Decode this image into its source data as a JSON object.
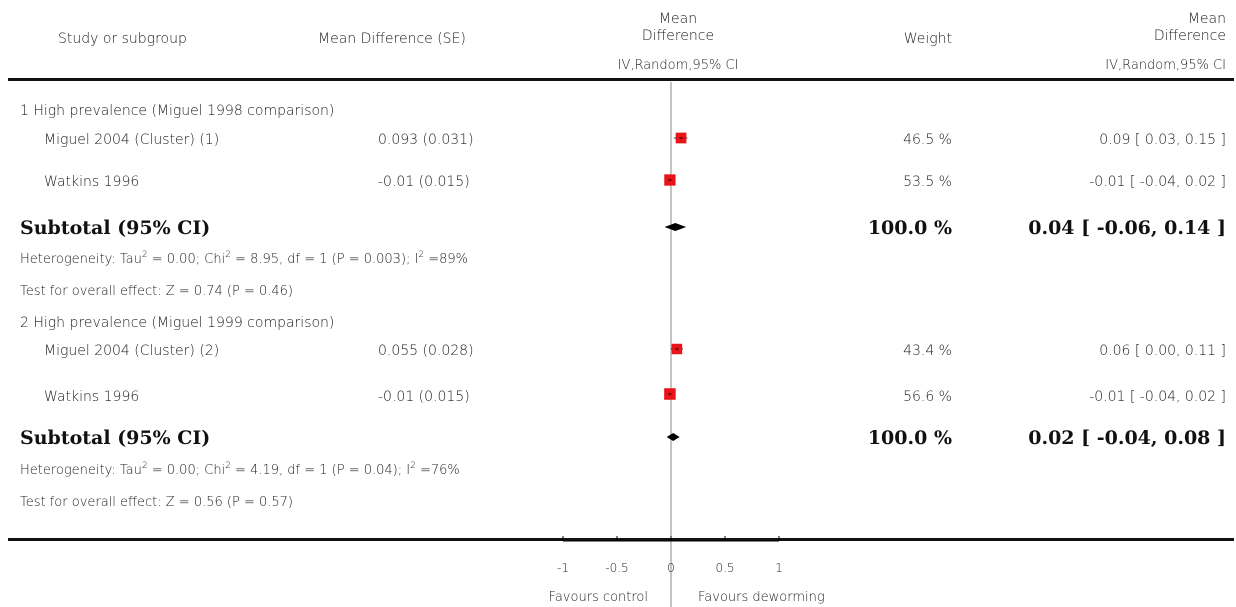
{
  "header": {
    "study": "Study or subgroup",
    "md_se": "Mean Difference (SE)",
    "md_line1": "Mean",
    "md_line2": "Difference",
    "md_method": "IV,Random,95% CI",
    "weight": "Weight",
    "md2_line1": "Mean",
    "md2_line2": "Difference",
    "md2_method": "IV,Random,95% CI"
  },
  "groups": [
    {
      "title": "1 High prevalence (Miguel 1998 comparison)",
      "studies": [
        {
          "name": "Miguel 2004 (Cluster) (1)",
          "md_se": "0.093 (0.031)",
          "weight": "46.5 %",
          "ci_text": "0.09 [ 0.03, 0.15 ]"
        },
        {
          "name": "Watkins 1996",
          "md_se": "-0.01 (0.015)",
          "weight": "53.5 %",
          "ci_text": "-0.01 [ -0.04, 0.02 ]"
        }
      ],
      "subtotal_label": "Subtotal (95% CI)",
      "subtotal_weight": "100.0 %",
      "subtotal_ci": "0.04 [ -0.06, 0.14 ]",
      "heterogeneity": {
        "a": "Heterogeneity: Tau",
        "b": " = 0.00; Chi",
        "c": " = 8.95, df = 1 (P = 0.003); I",
        "d": " =89%",
        "sup": "2"
      },
      "overall": "Test for overall effect: Z = 0.74 (P = 0.46)"
    },
    {
      "title": "2 High prevalence (Miguel 1999 comparison)",
      "studies": [
        {
          "name": "Miguel 2004 (Cluster) (2)",
          "md_se": "0.055 (0.028)",
          "weight": "43.4 %",
          "ci_text": "0.06 [ 0.00, 0.11 ]"
        },
        {
          "name": "Watkins 1996",
          "md_se": "-0.01 (0.015)",
          "weight": "56.6 %",
          "ci_text": "-0.01 [ -0.04, 0.02 ]"
        }
      ],
      "subtotal_label": "Subtotal (95% CI)",
      "subtotal_weight": "100.0 %",
      "subtotal_ci": "0.02 [ -0.04, 0.08 ]",
      "heterogeneity": {
        "a": "Heterogeneity: Tau",
        "b": " = 0.00; Chi",
        "c": " = 4.19, df = 1 (P = 0.04); I",
        "d": " =76%",
        "sup": "2"
      },
      "overall": "Test for overall effect: Z = 0.56 (P = 0.57)"
    }
  ],
  "footer": {
    "favours_left": "Favours control",
    "favours_right": "Favours deworming"
  },
  "chart_data": {
    "type": "forest",
    "xlim": [
      -1,
      1
    ],
    "ticks": [
      -1,
      -0.5,
      0,
      0.5,
      1
    ],
    "tick_labels": [
      "-1",
      "-0.5",
      "0",
      "0.5",
      "1"
    ],
    "studies": [
      {
        "group": 1,
        "name": "Miguel 2004 (Cluster) (1)",
        "md": 0.093,
        "ci": [
          0.03,
          0.15
        ],
        "weight": 46.5
      },
      {
        "group": 1,
        "name": "Watkins 1996",
        "md": -0.01,
        "ci": [
          -0.04,
          0.02
        ],
        "weight": 53.5
      },
      {
        "group": 2,
        "name": "Miguel 2004 (Cluster) (2)",
        "md": 0.055,
        "ci": [
          0.0,
          0.11
        ],
        "weight": 43.4
      },
      {
        "group": 2,
        "name": "Watkins 1996",
        "md": -0.01,
        "ci": [
          -0.04,
          0.02
        ],
        "weight": 56.6
      }
    ],
    "subtotals": [
      {
        "group": 1,
        "md": 0.04,
        "ci": [
          -0.06,
          0.14
        ]
      },
      {
        "group": 2,
        "md": 0.02,
        "ci": [
          -0.04,
          0.08
        ]
      }
    ],
    "colors": {
      "study_box": "#e8141a",
      "diamond": "#000000",
      "line": "#000000"
    }
  }
}
